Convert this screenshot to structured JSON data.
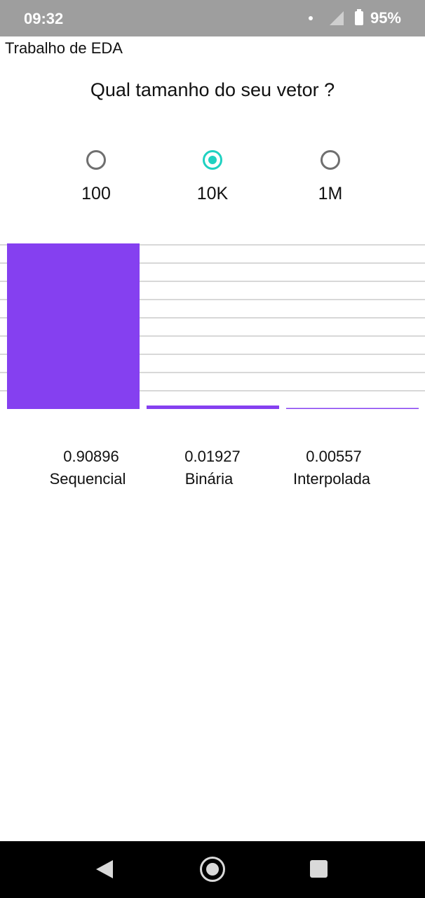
{
  "status_bar": {
    "time": "09:32",
    "battery": "95%"
  },
  "app": {
    "title": "Trabalho de EDA"
  },
  "question": "Qual tamanho do seu vetor ?",
  "radio_options": [
    {
      "label": "100",
      "selected": false
    },
    {
      "label": "10K",
      "selected": true
    },
    {
      "label": "1M",
      "selected": false
    }
  ],
  "colors": {
    "bar": "#8540f0",
    "accent": "#1fd1c1",
    "grid": "#cccccc"
  },
  "chart_data": {
    "type": "bar",
    "categories": [
      "Sequencial",
      "Binária",
      "Interpolada"
    ],
    "values": [
      0.90896,
      0.01927,
      0.00557
    ],
    "value_labels": [
      "0.90896",
      "0.01927",
      "0.00557"
    ],
    "ylim": [
      0,
      0.90896
    ],
    "grid": true
  }
}
